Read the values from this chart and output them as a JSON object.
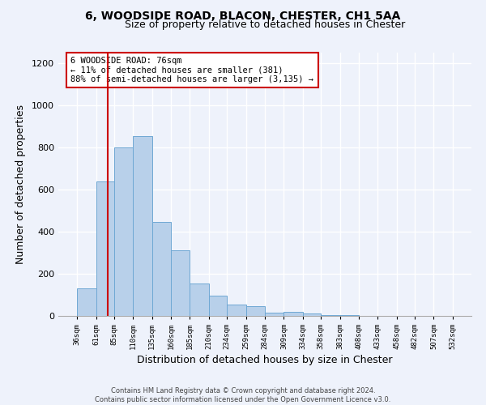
{
  "title1": "6, WOODSIDE ROAD, BLACON, CHESTER, CH1 5AA",
  "title2": "Size of property relative to detached houses in Chester",
  "xlabel": "Distribution of detached houses by size in Chester",
  "ylabel": "Number of detached properties",
  "bins": [
    36,
    61,
    85,
    110,
    135,
    160,
    185,
    210,
    234,
    259,
    284,
    309,
    334,
    358,
    383,
    408,
    433,
    458,
    482,
    507,
    532
  ],
  "counts": [
    130,
    640,
    800,
    855,
    445,
    310,
    155,
    95,
    55,
    45,
    15,
    20,
    10,
    5,
    2,
    1,
    0,
    1,
    0,
    0
  ],
  "bar_color": "#b8d0ea",
  "bar_edge_color": "#6fa8d4",
  "reference_line_x": 76,
  "reference_line_color": "#cc0000",
  "annotation_line1": "6 WOODSIDE ROAD: 76sqm",
  "annotation_line2": "← 11% of detached houses are smaller (381)",
  "annotation_line3": "88% of semi-detached houses are larger (3,135) →",
  "ylim": [
    0,
    1250
  ],
  "yticks": [
    0,
    200,
    400,
    600,
    800,
    1000,
    1200
  ],
  "background_color": "#eef2fb",
  "grid_color": "#ffffff",
  "footer1": "Contains HM Land Registry data © Crown copyright and database right 2024.",
  "footer2": "Contains public sector information licensed under the Open Government Licence v3.0."
}
